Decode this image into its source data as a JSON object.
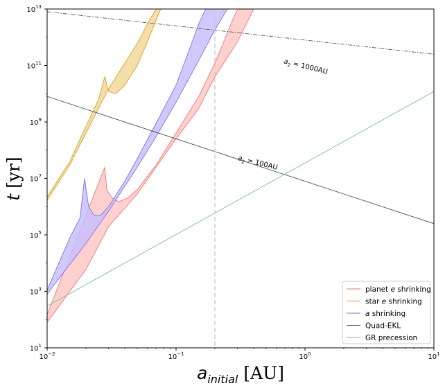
{
  "chart_data": {
    "type": "line",
    "xlabel": {
      "italic": "a",
      "sub": "initial",
      "unit": "[AU]"
    },
    "ylabel": {
      "italic": "t",
      "unit": "[yr]"
    },
    "xscale": "log",
    "yscale": "log",
    "xlim": [
      0.01,
      10
    ],
    "ylim": [
      10,
      10000000000000
    ],
    "x_ticks": [
      {
        "value": 0.01,
        "base": "10",
        "exp": "−2"
      },
      {
        "value": 0.1,
        "base": "10",
        "exp": "−1"
      },
      {
        "value": 1,
        "base": "10",
        "exp": "0"
      },
      {
        "value": 10,
        "base": "10",
        "exp": "1"
      }
    ],
    "y_ticks": [
      {
        "value": 10,
        "base": "10",
        "exp": "1"
      },
      {
        "value": 1000,
        "base": "10",
        "exp": "3"
      },
      {
        "value": 100000,
        "base": "10",
        "exp": "5"
      },
      {
        "value": 10000000,
        "base": "10",
        "exp": "7"
      },
      {
        "value": 1000000000,
        "base": "10",
        "exp": "9"
      },
      {
        "value": 100000000000,
        "base": "10",
        "exp": "11"
      },
      {
        "value": 10000000000000,
        "base": "10",
        "exp": "13"
      }
    ],
    "grid": false,
    "legend_position": "lower-right",
    "bands": [
      {
        "name": "planet e shrinking",
        "legend_label": {
          "pre": "planet ",
          "italic": "e",
          "post": " shrinking"
        },
        "color": "#e8766f",
        "fill": "#ffc9c5",
        "upper": [
          [
            0.01,
            150
          ],
          [
            0.028,
            25000000
          ],
          [
            0.029,
            4000000
          ],
          [
            0.032,
            2000000
          ],
          [
            0.036,
            1500000
          ],
          [
            0.042,
            2000000
          ],
          [
            0.05,
            4000000
          ],
          [
            0.07,
            30000000
          ],
          [
            0.1,
            400000000
          ],
          [
            0.15,
            8000000000
          ],
          [
            0.2,
            120000000000
          ],
          [
            0.28,
            5000000000000
          ],
          [
            0.3,
            10000000000000
          ]
        ],
        "lower": [
          [
            0.01,
            80
          ],
          [
            0.02,
            6000
          ],
          [
            0.03,
            200000
          ],
          [
            0.05,
            2800000
          ],
          [
            0.07,
            25000000
          ],
          [
            0.1,
            250000000
          ],
          [
            0.15,
            3000000000
          ],
          [
            0.2,
            40000000000
          ],
          [
            0.3,
            700000000000
          ],
          [
            0.4,
            10000000000000
          ]
        ]
      },
      {
        "name": "star e shrinking",
        "legend_label": {
          "pre": "star ",
          "italic": "e",
          "post": " shrinking"
        },
        "color": "#d4a020",
        "fill": "#f2d89c",
        "upper": [
          [
            0.01,
            2200000
          ],
          [
            0.015,
            40000000
          ],
          [
            0.02,
            700000000
          ],
          [
            0.025,
            6000000000
          ],
          [
            0.028,
            40000000000
          ],
          [
            0.03,
            12000000000
          ],
          [
            0.034,
            10000000000
          ],
          [
            0.04,
            20000000000
          ],
          [
            0.05,
            100000000000
          ],
          [
            0.06,
            700000000000
          ],
          [
            0.07,
            4000000000000
          ],
          [
            0.076,
            10000000000000
          ]
        ],
        "lower": [
          [
            0.01,
            1700000
          ],
          [
            0.015,
            30000000
          ],
          [
            0.02,
            400000000
          ],
          [
            0.025,
            3000000000
          ],
          [
            0.03,
            15000000000
          ],
          [
            0.04,
            120000000000
          ],
          [
            0.05,
            600000000000
          ],
          [
            0.06,
            3000000000000
          ],
          [
            0.07,
            10000000000000
          ]
        ]
      },
      {
        "name": "a shrinking",
        "legend_label": {
          "pre": "",
          "italic": "a",
          "post": " shrinking"
        },
        "color": "#8070e0",
        "fill": "#c8bffb",
        "upper": [
          [
            0.01,
            1100
          ],
          [
            0.015,
            80000
          ],
          [
            0.018,
            400000
          ],
          [
            0.0195,
            10000000
          ],
          [
            0.021,
            1000000
          ],
          [
            0.023,
            500000
          ],
          [
            0.026,
            500000
          ],
          [
            0.03,
            1000000
          ],
          [
            0.04,
            8000000
          ],
          [
            0.05,
            50000000
          ],
          [
            0.07,
            900000000
          ],
          [
            0.1,
            20000000000
          ],
          [
            0.13,
            500000000000
          ],
          [
            0.15,
            3000000000000
          ],
          [
            0.17,
            10000000000000
          ]
        ],
        "lower": [
          [
            0.01,
            800
          ],
          [
            0.02,
            50000
          ],
          [
            0.03,
            700000
          ],
          [
            0.05,
            25000000
          ],
          [
            0.07,
            300000000
          ],
          [
            0.1,
            5000000000
          ],
          [
            0.15,
            150000000000
          ],
          [
            0.2,
            1800000000000
          ],
          [
            0.25,
            10000000000000
          ]
        ]
      }
    ],
    "lines": [
      {
        "name": "Quad-EKL",
        "color": "#3c5a46",
        "dash": "",
        "x": [
          0.01,
          10
        ],
        "y": [
          8000000000,
          250000
        ]
      },
      {
        "name": "GR precession",
        "color": "#6cc09a",
        "dash": "",
        "x": [
          0.01,
          10
        ],
        "y": [
          300,
          12000000000
        ]
      },
      {
        "name": "a2 = 1000AU",
        "color": "#555555",
        "dash": "6,2,1.5,2",
        "x": [
          0.01,
          10
        ],
        "y": [
          8000000000000,
          250000000000
        ]
      }
    ],
    "vline": {
      "x": 0.2,
      "color": "#cccccc",
      "dash": "6,4"
    },
    "annotations": [
      {
        "base": "a",
        "sub": "2",
        "text": " = 100AU",
        "x": 0.3,
        "y": 45000000,
        "angle": 14
      },
      {
        "base": "a",
        "sub": "2",
        "text": " = 1000AU",
        "x": 0.68,
        "y": 120000000000,
        "angle": 14
      }
    ],
    "legend": [
      {
        "band": 0
      },
      {
        "band": 1
      },
      {
        "band": 2
      },
      {
        "line": 0
      },
      {
        "line": 1
      }
    ]
  }
}
